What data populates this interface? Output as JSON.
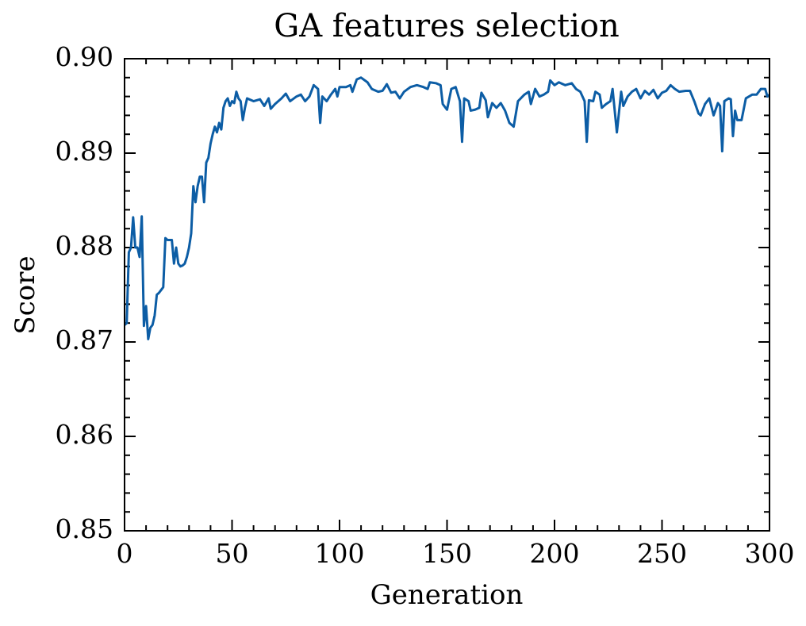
{
  "chart_data": {
    "type": "line",
    "title": "GA features selection",
    "xlabel": "Generation",
    "ylabel": "Score",
    "xlim": [
      0,
      300
    ],
    "xticks": [
      0,
      50,
      100,
      150,
      200,
      250,
      300
    ],
    "ylim": [
      0.85,
      0.9
    ],
    "yticks": [
      0.85,
      0.86,
      0.87,
      0.88,
      0.89,
      {
        "value": 0.9,
        "label": "0.90"
      }
    ],
    "grid": false,
    "series": [
      {
        "color": "#0C5DA5",
        "x": [
          0,
          1,
          2,
          3,
          4,
          5,
          6,
          7,
          8,
          9,
          10,
          11,
          12,
          13,
          14,
          15,
          16,
          17,
          18,
          19,
          20,
          21,
          22,
          23,
          24,
          25,
          26,
          27,
          28,
          29,
          30,
          31,
          32,
          33,
          34,
          35,
          36,
          37,
          38,
          39,
          40,
          41,
          42,
          43,
          44,
          45,
          46,
          47,
          48,
          49,
          50,
          51,
          52,
          53,
          54,
          55,
          56,
          57,
          60,
          63,
          65,
          67,
          68,
          70,
          73,
          75,
          77,
          80,
          82,
          84,
          86,
          88,
          90,
          91,
          92,
          94,
          96,
          98,
          99,
          100,
          103,
          105,
          106,
          108,
          110,
          113,
          115,
          118,
          120,
          122,
          124,
          126,
          128,
          130,
          133,
          136,
          139,
          141,
          142,
          145,
          147,
          148,
          150,
          152,
          154,
          156,
          157,
          158,
          160,
          161,
          163,
          165,
          166,
          168,
          169,
          171,
          173,
          175,
          177,
          179,
          181,
          183,
          186,
          188,
          189,
          191,
          193,
          195,
          197,
          198,
          200,
          202,
          205,
          208,
          210,
          212,
          214,
          215,
          216,
          218,
          219,
          221,
          222,
          224,
          226,
          227,
          229,
          231,
          232,
          234,
          236,
          238,
          240,
          242,
          244,
          246,
          248,
          250,
          252,
          254,
          256,
          258,
          261,
          263,
          265,
          267,
          268,
          270,
          272,
          274,
          276,
          277,
          278,
          279,
          281,
          282,
          283,
          284,
          285,
          287,
          289,
          292,
          294,
          296,
          298,
          299,
          300
        ],
        "values": [
          0.8718,
          0.872,
          0.8795,
          0.88,
          0.8832,
          0.88,
          0.88,
          0.879,
          0.8833,
          0.8717,
          0.8738,
          0.8703,
          0.8715,
          0.8718,
          0.8728,
          0.875,
          0.8752,
          0.8755,
          0.8758,
          0.881,
          0.8808,
          0.8808,
          0.8808,
          0.8783,
          0.88,
          0.8783,
          0.878,
          0.8781,
          0.8783,
          0.879,
          0.88,
          0.8815,
          0.8865,
          0.8848,
          0.8865,
          0.8875,
          0.8875,
          0.8848,
          0.889,
          0.8895,
          0.891,
          0.892,
          0.8928,
          0.8922,
          0.8932,
          0.8925,
          0.8948,
          0.8955,
          0.8958,
          0.895,
          0.8955,
          0.8953,
          0.8965,
          0.8958,
          0.8955,
          0.8935,
          0.8948,
          0.8958,
          0.8955,
          0.8957,
          0.895,
          0.8958,
          0.8947,
          0.8952,
          0.8958,
          0.8963,
          0.8955,
          0.896,
          0.8962,
          0.8955,
          0.896,
          0.8972,
          0.8968,
          0.8932,
          0.896,
          0.8955,
          0.8962,
          0.8968,
          0.896,
          0.897,
          0.897,
          0.8972,
          0.8965,
          0.8978,
          0.898,
          0.8975,
          0.8968,
          0.8965,
          0.8966,
          0.8973,
          0.8964,
          0.8965,
          0.8958,
          0.8965,
          0.897,
          0.8972,
          0.897,
          0.8968,
          0.8975,
          0.8974,
          0.8972,
          0.8952,
          0.8946,
          0.8968,
          0.897,
          0.8955,
          0.8912,
          0.8958,
          0.8955,
          0.8945,
          0.8946,
          0.8948,
          0.8964,
          0.8956,
          0.8938,
          0.8953,
          0.8948,
          0.8953,
          0.8945,
          0.8932,
          0.8928,
          0.8955,
          0.8962,
          0.8965,
          0.8952,
          0.8968,
          0.896,
          0.8962,
          0.8965,
          0.8977,
          0.8972,
          0.8975,
          0.8972,
          0.8974,
          0.8968,
          0.8965,
          0.8955,
          0.8912,
          0.8956,
          0.8955,
          0.8965,
          0.8962,
          0.8948,
          0.8952,
          0.8955,
          0.8968,
          0.8922,
          0.8965,
          0.895,
          0.896,
          0.8965,
          0.8968,
          0.8958,
          0.8966,
          0.8962,
          0.8967,
          0.8958,
          0.8964,
          0.8966,
          0.8972,
          0.8968,
          0.8965,
          0.8966,
          0.8966,
          0.8955,
          0.8942,
          0.894,
          0.8952,
          0.8958,
          0.894,
          0.8953,
          0.895,
          0.8902,
          0.8955,
          0.8958,
          0.8957,
          0.8918,
          0.8945,
          0.8935,
          0.8935,
          0.8958,
          0.8962,
          0.8962,
          0.8968,
          0.8968,
          0.896,
          0.8962
        ]
      }
    ]
  }
}
